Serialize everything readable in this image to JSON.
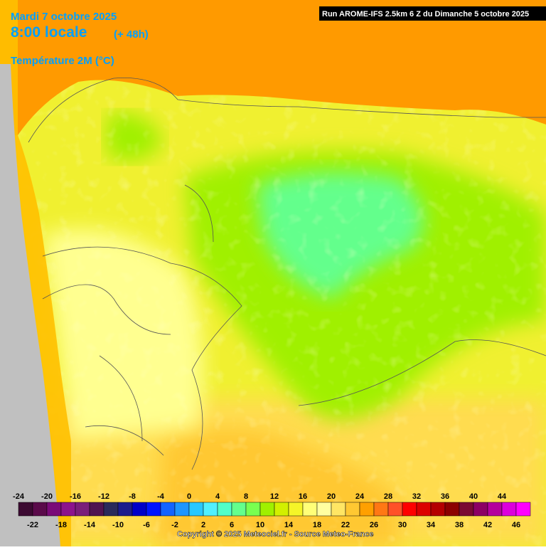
{
  "header": {
    "date": "Mardi 7 octobre 2025",
    "time": "8:00 locale",
    "lead": "(+ 48h)",
    "field": "Température 2M (°C)",
    "run": "Run AROME-IFS 2.5km 6 Z du Dimanche 5 octobre 2025"
  },
  "legend": {
    "values": [
      -24,
      -22,
      -20,
      -18,
      -16,
      -14,
      -12,
      -10,
      -8,
      -6,
      -4,
      -2,
      0,
      2,
      4,
      6,
      8,
      10,
      12,
      14,
      16,
      18,
      20,
      22,
      24,
      26,
      28,
      30,
      32,
      34,
      36,
      38,
      40,
      42,
      44,
      46
    ],
    "colors": [
      "#3c0a32",
      "#5a0a4a",
      "#7a0a78",
      "#8c148c",
      "#7a1e7a",
      "#501450",
      "#2a2a5a",
      "#1c1c8c",
      "#0000c8",
      "#0014ff",
      "#1464ff",
      "#1e96ff",
      "#28c8ff",
      "#50f0ff",
      "#50ffc8",
      "#64ff8c",
      "#78ff50",
      "#a0f000",
      "#d2f000",
      "#f5f528",
      "#ffff78",
      "#ffffa0",
      "#ffe664",
      "#ffc832",
      "#ffa000",
      "#ff7814",
      "#ff5028",
      "#ff0000",
      "#dc0000",
      "#b40000",
      "#8c0000",
      "#7a0a32",
      "#8c0064",
      "#b4009c",
      "#dc00dc",
      "#ff00ff"
    ]
  },
  "footer": {
    "copyright": "Copyright © 2025 Meteociel.fr - Source Meteo-France"
  }
}
